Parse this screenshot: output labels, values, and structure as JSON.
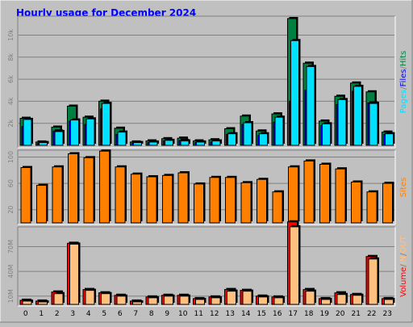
{
  "title": "Hourly usage for December 2024",
  "colors": {
    "background": "#c0c0c0",
    "title": "#0000ff",
    "hits": "#008040",
    "files": "#0000ff",
    "pages": "#00e0ff",
    "sites": "#ff8000",
    "volume": "#ff0000",
    "in_out": "#ffc080",
    "grid": "#808080",
    "panel_dark": "#808080",
    "panel_light": "#ffffff"
  },
  "chart_data": [
    {
      "type": "bar",
      "categories": [
        "0",
        "1",
        "2",
        "3",
        "4",
        "5",
        "6",
        "7",
        "8",
        "9",
        "10",
        "11",
        "12",
        "13",
        "14",
        "15",
        "16",
        "17",
        "18",
        "19",
        "20",
        "21",
        "22",
        "23"
      ],
      "ylim": [
        0,
        11500
      ],
      "yticks": [
        {
          "value": 2000,
          "label": "2k"
        },
        {
          "value": 4000,
          "label": "4k"
        },
        {
          "value": 6000,
          "label": "6k"
        },
        {
          "value": 8000,
          "label": "8k"
        },
        {
          "value": 10000,
          "label": "10k"
        }
      ],
      "legend": [
        {
          "name": "Pages",
          "color": "#00e0ff"
        },
        {
          "name": "/",
          "color": "#808080"
        },
        {
          "name": "Files",
          "color": "#0000ff"
        },
        {
          "name": "/",
          "color": "#808080"
        },
        {
          "name": "Hits",
          "color": "#008040"
        }
      ],
      "series": [
        {
          "name": "Hits",
          "values": [
            2450,
            300,
            1650,
            3550,
            2550,
            4000,
            1550,
            300,
            400,
            600,
            650,
            400,
            500,
            1500,
            2650,
            1300,
            2850,
            11500,
            7450,
            2200,
            4450,
            5650,
            4850,
            1200
          ]
        },
        {
          "name": "Files",
          "values": [
            1700,
            200,
            1300,
            2200,
            1900,
            3300,
            1000,
            200,
            250,
            400,
            450,
            250,
            300,
            1000,
            1900,
            900,
            2100,
            4000,
            5000,
            1800,
            3700,
            4900,
            3850,
            1000
          ]
        },
        {
          "name": "Pages",
          "values": [
            2350,
            250,
            1250,
            2300,
            2400,
            3800,
            1200,
            250,
            300,
            450,
            400,
            300,
            400,
            1050,
            2050,
            1050,
            2550,
            9500,
            7150,
            1950,
            4150,
            5350,
            3800,
            1050
          ]
        }
      ]
    },
    {
      "type": "bar",
      "categories": [
        "0",
        "1",
        "2",
        "3",
        "4",
        "5",
        "6",
        "7",
        "8",
        "9",
        "10",
        "11",
        "12",
        "13",
        "14",
        "15",
        "16",
        "17",
        "18",
        "19",
        "20",
        "21",
        "22",
        "23"
      ],
      "ylim": [
        0,
        108
      ],
      "yticks": [
        {
          "value": 20,
          "label": "20"
        },
        {
          "value": 60,
          "label": "60"
        },
        {
          "value": 100,
          "label": "100"
        }
      ],
      "legend": [
        {
          "name": "Sites",
          "color": "#ff8000"
        }
      ],
      "series": [
        {
          "name": "Sites",
          "values": [
            84,
            57,
            85,
            105,
            99,
            109,
            85,
            74,
            70,
            72,
            76,
            59,
            69,
            69,
            61,
            66,
            47,
            85,
            94,
            89,
            82,
            62,
            47,
            60
          ]
        }
      ]
    },
    {
      "type": "bar",
      "categories": [
        "0",
        "1",
        "2",
        "3",
        "4",
        "5",
        "6",
        "7",
        "8",
        "9",
        "10",
        "11",
        "12",
        "13",
        "14",
        "15",
        "16",
        "17",
        "18",
        "19",
        "20",
        "21",
        "22",
        "23"
      ],
      "ylim": [
        0,
        90
      ],
      "yticks": [
        {
          "value": 10,
          "label": "10M"
        },
        {
          "value": 40,
          "label": "40M"
        },
        {
          "value": 70,
          "label": "70M"
        }
      ],
      "legend": [
        {
          "name": "Volume",
          "color": "#ff0000"
        },
        {
          "name": "/",
          "color": "#808080"
        },
        {
          "name": "IN",
          "color": "#ffc080"
        },
        {
          "name": "/",
          "color": "#808080"
        },
        {
          "name": "OUT",
          "color": "#ffc080"
        }
      ],
      "series": [
        {
          "name": "Volume",
          "values": [
            5,
            4,
            15,
            74,
            18,
            14,
            11,
            4,
            9,
            11,
            11,
            7,
            9,
            18,
            17,
            10,
            9,
            100,
            18,
            7,
            14,
            12,
            58,
            7
          ]
        },
        {
          "name": "IN/OUT",
          "values": [
            4,
            3,
            13,
            73,
            17,
            13,
            10,
            3,
            8,
            10,
            10,
            6,
            8,
            16,
            16,
            9,
            8,
            94,
            16,
            6,
            12,
            11,
            55,
            6
          ]
        }
      ]
    }
  ]
}
